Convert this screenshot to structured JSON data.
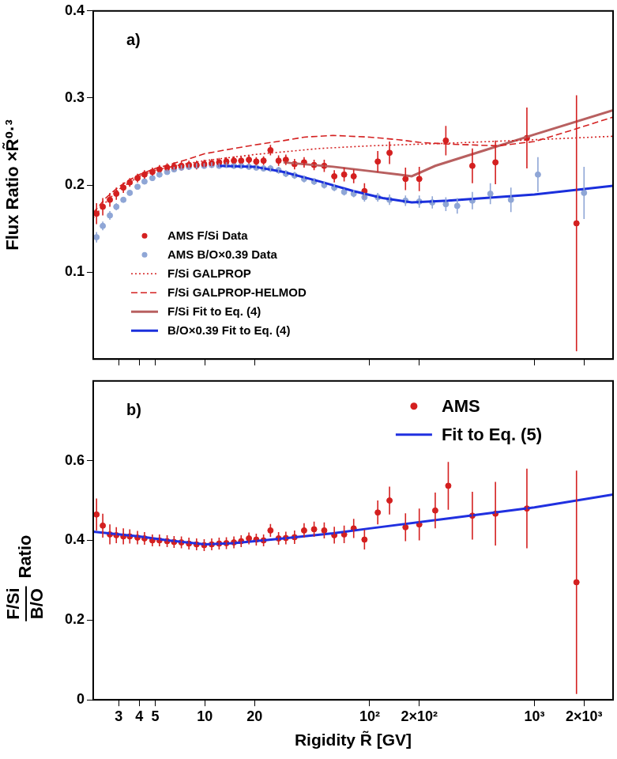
{
  "chart_data": [
    {
      "type": "scatter",
      "annotations": [
        {
          "text": "a)"
        }
      ],
      "ylabel": "Flux Ratio ×R̃⁰·³",
      "log": "x",
      "xlim": [
        2.1,
        3000
      ],
      "ylim": [
        0,
        0.4
      ],
      "xticks": [
        3,
        4,
        5,
        10,
        20,
        {
          "value": 100,
          "label": "10²"
        },
        {
          "value": 200,
          "label": "2×10²"
        },
        {
          "value": 1000,
          "label": "10³"
        },
        {
          "value": 2000,
          "label": "2×10³"
        }
      ],
      "yticks": [
        0.1,
        0.2,
        0.3,
        0.4
      ],
      "tick_labels": "y",
      "grid": false,
      "legend": "lower left",
      "series": [
        {
          "name": "AMS F/Si Data",
          "type": "scatter",
          "marker": "circle",
          "color": "#d42020",
          "x": [
            2.2,
            2.4,
            2.65,
            2.9,
            3.2,
            3.5,
            3.9,
            4.3,
            4.8,
            5.3,
            5.9,
            6.5,
            7.2,
            8,
            8.9,
            9.9,
            11,
            12.2,
            13.5,
            15,
            16.6,
            18.5,
            20.5,
            22.7,
            25,
            28,
            31,
            35,
            40,
            46,
            53,
            61,
            70,
            80,
            93,
            112,
            132,
            165,
            200,
            290,
            420,
            580,
            900,
            1800
          ],
          "values": [
            0.167,
            0.175,
            0.183,
            0.19,
            0.197,
            0.203,
            0.208,
            0.212,
            0.215,
            0.218,
            0.22,
            0.221,
            0.222,
            0.223,
            0.223,
            0.224,
            0.225,
            0.226,
            0.227,
            0.228,
            0.228,
            0.229,
            0.227,
            0.228,
            0.24,
            0.228,
            0.229,
            0.224,
            0.226,
            0.223,
            0.222,
            0.21,
            0.212,
            0.21,
            0.193,
            0.227,
            0.237,
            0.207,
            0.207,
            0.251,
            0.222,
            0.226,
            0.254,
            0.156
          ],
          "errors": [
            0.012,
            0.01,
            0.008,
            0.007,
            0.006,
            0.005,
            0.005,
            0.005,
            0.005,
            0.005,
            0.005,
            0.005,
            0.005,
            0.005,
            0.005,
            0.005,
            0.005,
            0.005,
            0.005,
            0.005,
            0.005,
            0.005,
            0.005,
            0.005,
            0.006,
            0.006,
            0.006,
            0.006,
            0.006,
            0.006,
            0.007,
            0.007,
            0.008,
            0.008,
            0.009,
            0.012,
            0.013,
            0.013,
            0.014,
            0.017,
            0.02,
            0.025,
            0.035,
            0.147
          ]
        },
        {
          "name": "AMS B/O×0.39 Data",
          "type": "scatter",
          "marker": "circle",
          "color": "#8fa6d6",
          "x": [
            2.2,
            2.4,
            2.65,
            2.9,
            3.2,
            3.5,
            3.9,
            4.3,
            4.8,
            5.3,
            5.9,
            6.5,
            7.2,
            8,
            8.9,
            9.9,
            11,
            12.2,
            13.5,
            15,
            16.6,
            18.5,
            20.5,
            22.7,
            25,
            28,
            31,
            35,
            40,
            46,
            53,
            61,
            70,
            80,
            93,
            112,
            132,
            165,
            200,
            240,
            290,
            340,
            420,
            540,
            720,
            1050,
            2000
          ],
          "values": [
            0.14,
            0.153,
            0.165,
            0.175,
            0.183,
            0.191,
            0.198,
            0.204,
            0.208,
            0.212,
            0.215,
            0.218,
            0.22,
            0.221,
            0.222,
            0.222,
            0.223,
            0.222,
            0.223,
            0.222,
            0.222,
            0.221,
            0.22,
            0.219,
            0.219,
            0.217,
            0.213,
            0.211,
            0.207,
            0.204,
            0.2,
            0.197,
            0.192,
            0.19,
            0.186,
            0.186,
            0.183,
            0.182,
            0.181,
            0.18,
            0.178,
            0.176,
            0.182,
            0.19,
            0.183,
            0.212,
            0.191
          ],
          "errors": [
            0.006,
            0.005,
            0.005,
            0.004,
            0.003,
            0.003,
            0.003,
            0.003,
            0.003,
            0.003,
            0.003,
            0.003,
            0.003,
            0.003,
            0.003,
            0.003,
            0.003,
            0.003,
            0.003,
            0.003,
            0.003,
            0.003,
            0.003,
            0.003,
            0.004,
            0.004,
            0.004,
            0.004,
            0.004,
            0.004,
            0.004,
            0.004,
            0.004,
            0.004,
            0.005,
            0.005,
            0.006,
            0.006,
            0.007,
            0.007,
            0.008,
            0.009,
            0.01,
            0.012,
            0.014,
            0.02,
            0.03
          ]
        },
        {
          "name": "F/Si GALPROP",
          "type": "line",
          "line_style": "dotted",
          "color": "#d42020",
          "x": [
            2.1,
            2.5,
            3,
            4,
            5,
            7,
            10,
            20,
            50,
            100,
            300,
            1000,
            3000
          ],
          "values": [
            0.162,
            0.18,
            0.195,
            0.21,
            0.217,
            0.223,
            0.228,
            0.235,
            0.242,
            0.245,
            0.248,
            0.252,
            0.256
          ]
        },
        {
          "name": "F/Si GALPROP-HELMOD",
          "type": "line",
          "line_style": "dashed",
          "color": "#d42020",
          "x": [
            2.1,
            2.5,
            3,
            3.5,
            4,
            5,
            6,
            8,
            10,
            15,
            20,
            30,
            40,
            60,
            100,
            150,
            200,
            300,
            600,
            1000,
            1500,
            3000
          ],
          "values": [
            0.168,
            0.185,
            0.198,
            0.206,
            0.212,
            0.219,
            0.223,
            0.23,
            0.236,
            0.242,
            0.246,
            0.251,
            0.255,
            0.257,
            0.255,
            0.252,
            0.249,
            0.247,
            0.245,
            0.25,
            0.26,
            0.278
          ]
        },
        {
          "name": "F/Si Fit to Eq. (4)",
          "type": "line",
          "line_style": "solid",
          "color": "#b86060",
          "x": [
            30,
            60,
            100,
            150,
            180,
            250,
            500,
            1000,
            3000
          ],
          "values": [
            0.226,
            0.221,
            0.216,
            0.212,
            0.21,
            0.222,
            0.24,
            0.258,
            0.286
          ]
        },
        {
          "name": "B/O×0.39 Fit to Eq. (4)",
          "type": "line",
          "line_style": "solid",
          "color": "#1a2fdc",
          "x": [
            12,
            20,
            30,
            50,
            80,
            120,
            180,
            300,
            1000,
            3000
          ],
          "values": [
            0.222,
            0.221,
            0.215,
            0.204,
            0.193,
            0.185,
            0.18,
            0.182,
            0.189,
            0.199
          ]
        }
      ]
    },
    {
      "type": "scatter",
      "annotations": [
        {
          "text": "b)"
        }
      ],
      "ylabel": {
        "fraction": [
          "F/Si",
          "B/O"
        ],
        "text": "Ratio"
      },
      "xlabel": "Rigidity R̃ [GV]",
      "log": "x",
      "xlim": [
        2.1,
        3000
      ],
      "ylim": [
        0,
        0.8
      ],
      "xticks": [
        3,
        4,
        5,
        10,
        20,
        {
          "value": 100,
          "label": "10²"
        },
        {
          "value": 200,
          "label": "2×10²"
        },
        {
          "value": 1000,
          "label": "10³"
        },
        {
          "value": 2000,
          "label": "2×10³"
        }
      ],
      "yticks": [
        0,
        0.2,
        0.4,
        0.6
      ],
      "grid": false,
      "legend": "upper right",
      "series": [
        {
          "name": "AMS",
          "type": "scatter",
          "marker": "circle",
          "color": "#d42020",
          "x": [
            2.2,
            2.4,
            2.65,
            2.9,
            3.2,
            3.5,
            3.9,
            4.3,
            4.8,
            5.3,
            5.9,
            6.5,
            7.2,
            8,
            8.9,
            9.9,
            11,
            12.2,
            13.5,
            15,
            16.6,
            18.5,
            20.5,
            22.7,
            25,
            28,
            31,
            35,
            40,
            46,
            53,
            61,
            70,
            80,
            93,
            112,
            132,
            165,
            200,
            250,
            300,
            420,
            580,
            900,
            1800
          ],
          "values": [
            0.465,
            0.437,
            0.415,
            0.413,
            0.41,
            0.41,
            0.407,
            0.405,
            0.4,
            0.4,
            0.398,
            0.396,
            0.395,
            0.392,
            0.39,
            0.388,
            0.39,
            0.392,
            0.393,
            0.395,
            0.398,
            0.405,
            0.402,
            0.4,
            0.425,
            0.405,
            0.406,
            0.408,
            0.425,
            0.428,
            0.425,
            0.413,
            0.415,
            0.43,
            0.402,
            0.47,
            0.5,
            0.433,
            0.44,
            0.475,
            0.537,
            0.462,
            0.467,
            0.48,
            0.295
          ],
          "errors": [
            0.04,
            0.03,
            0.025,
            0.02,
            0.02,
            0.018,
            0.017,
            0.016,
            0.015,
            0.015,
            0.015,
            0.015,
            0.015,
            0.015,
            0.015,
            0.015,
            0.015,
            0.015,
            0.015,
            0.015,
            0.015,
            0.015,
            0.015,
            0.015,
            0.016,
            0.016,
            0.016,
            0.017,
            0.018,
            0.019,
            0.02,
            0.021,
            0.022,
            0.024,
            0.025,
            0.03,
            0.035,
            0.035,
            0.04,
            0.045,
            0.06,
            0.06,
            0.08,
            0.1,
            0.28
          ]
        },
        {
          "name": "Fit to Eq. (5)",
          "type": "line",
          "line_style": "solid",
          "color": "#2030e0",
          "x": [
            2.1,
            4,
            6,
            10,
            15,
            30,
            60,
            100,
            300,
            1000,
            3000
          ],
          "values": [
            0.422,
            0.41,
            0.4,
            0.39,
            0.393,
            0.405,
            0.418,
            0.43,
            0.455,
            0.483,
            0.515
          ]
        }
      ]
    }
  ]
}
